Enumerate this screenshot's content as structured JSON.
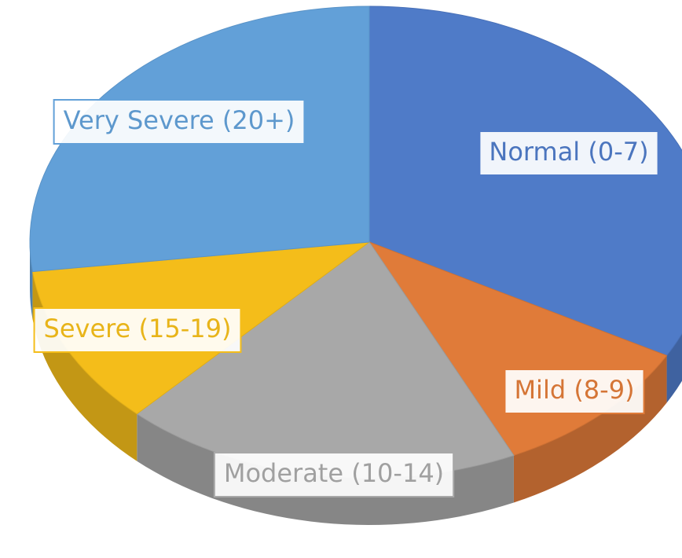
{
  "chart_data": {
    "type": "pie3d",
    "categories": [
      "Normal (0-7)",
      "Mild (8-9)",
      "Moderate (10-14)",
      "Severe (15-19)",
      "Very Severe (20+)"
    ],
    "values": [
      33,
      10,
      19,
      11,
      27
    ],
    "colors": [
      "#4f7bc8",
      "#e07b39",
      "#a8a8a8",
      "#f4bd1a",
      "#62a0d8"
    ]
  }
}
